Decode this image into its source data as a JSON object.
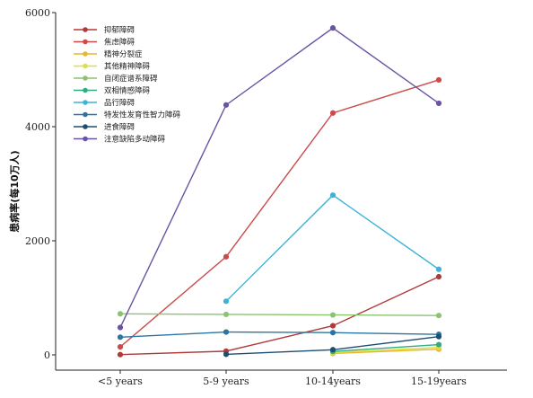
{
  "chart_data": {
    "type": "line",
    "title": "",
    "xlabel": "",
    "ylabel": "患病率(每10万人)",
    "categories": [
      "<5 years",
      "5-9 years",
      "10-14years",
      "15-19years"
    ],
    "ylim": [
      0,
      6000
    ],
    "yticks": [
      0,
      2000,
      4000,
      6000
    ],
    "grid": false,
    "legend": "top-left",
    "series": [
      {
        "name": "抑郁障碍",
        "color": "#b03a3a",
        "values": [
          5,
          65,
          510,
          1370
        ]
      },
      {
        "name": "焦虑障碍",
        "color": "#cc4a48",
        "values": [
          140,
          1720,
          4240,
          4820
        ]
      },
      {
        "name": "精神分裂症",
        "color": "#e8b631",
        "values": [
          null,
          null,
          25,
          100
        ]
      },
      {
        "name": "其他精神障碍",
        "color": "#dfe040",
        "values": [
          null,
          null,
          40,
          130
        ]
      },
      {
        "name": "自闭症谱系障碍",
        "color": "#8bc470",
        "values": [
          720,
          710,
          700,
          690
        ]
      },
      {
        "name": "双相情感障碍",
        "color": "#2fae84",
        "values": [
          null,
          null,
          60,
          180
        ]
      },
      {
        "name": "品行障碍",
        "color": "#3ab4d8",
        "values": [
          null,
          940,
          2800,
          1500
        ]
      },
      {
        "name": "特发性发育性智力障碍",
        "color": "#2b76a0",
        "values": [
          310,
          400,
          390,
          360
        ]
      },
      {
        "name": "进食障碍",
        "color": "#1c4e72",
        "values": [
          null,
          10,
          90,
          320
        ]
      },
      {
        "name": "注意缺陷多动障碍",
        "color": "#6a53a3",
        "values": [
          480,
          4380,
          5730,
          4410
        ]
      }
    ]
  }
}
